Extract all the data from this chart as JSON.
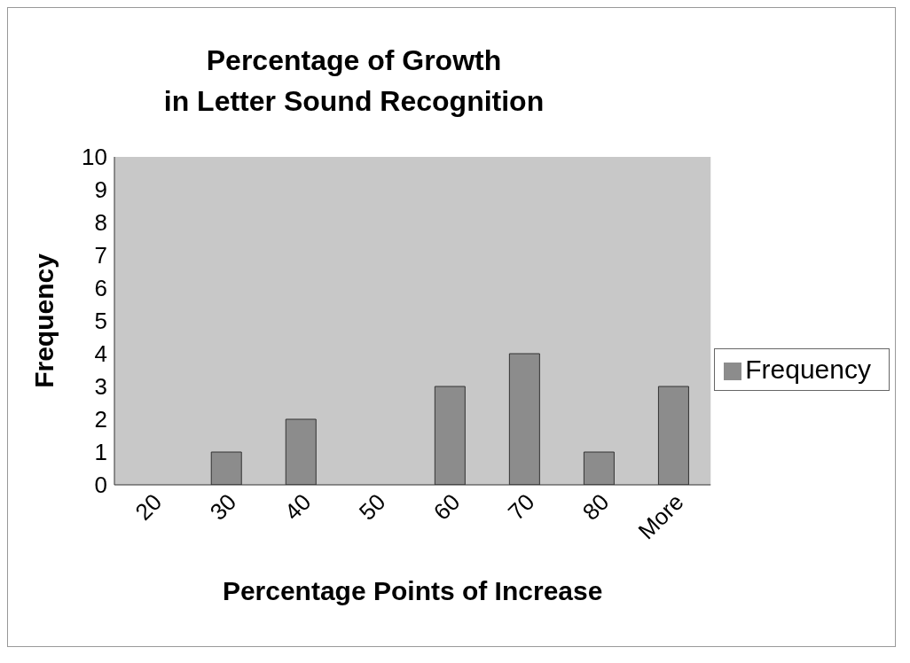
{
  "chart_data": {
    "type": "bar",
    "title": "Percentage of Growth\nin Letter Sound Recognition",
    "xlabel": "Percentage Points of Increase",
    "ylabel": "Frequency",
    "categories": [
      "20",
      "30",
      "40",
      "50",
      "60",
      "70",
      "80",
      "More"
    ],
    "series": [
      {
        "name": "Frequency",
        "color": "#8c8c8c",
        "values": [
          0,
          1,
          2,
          0,
          3,
          4,
          1,
          3
        ]
      }
    ],
    "ylim": [
      0,
      10
    ],
    "yticks": [
      0,
      1,
      2,
      3,
      4,
      5,
      6,
      7,
      8,
      9,
      10
    ],
    "grid": false,
    "legend": "right"
  }
}
